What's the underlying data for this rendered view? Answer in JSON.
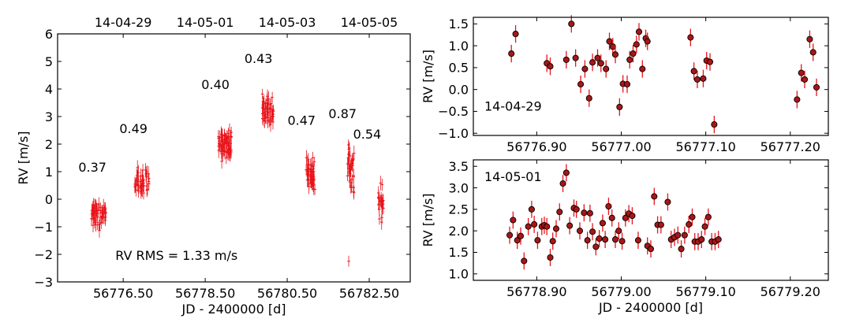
{
  "chart_data": [
    {
      "type": "scatter",
      "panel": "left",
      "xlabel": "JD - 2400000 [d]",
      "ylabel": "RV [m/s]",
      "xlim": [
        56774.9,
        56783.5
      ],
      "ylim": [
        -3,
        6
      ],
      "xticks": [
        56776.5,
        56778.5,
        56780.5,
        56782.5
      ],
      "xtick_labels": [
        "56776.50",
        "56778.50",
        "56780.50",
        "56782.50"
      ],
      "yticks": [
        -3,
        -2,
        -1,
        0,
        1,
        2,
        3,
        4,
        5,
        6
      ],
      "ytick_labels": [
        "−3",
        "−2",
        "−1",
        "0",
        "1",
        "2",
        "3",
        "4",
        "5",
        "6"
      ],
      "top_axis": {
        "ticks": [
          56776.5,
          56778.5,
          56780.5,
          56782.5
        ],
        "labels": [
          "14-04-29",
          "14-05-01",
          "14-05-03",
          "14-05-05"
        ]
      },
      "marker_color": "#e8141b",
      "groups": [
        {
          "label": "0.37",
          "x_center": 56775.9,
          "x_width": 0.36,
          "mean": -0.55,
          "spread": 0.37,
          "n": 55,
          "label_pos": [
            56775.75,
            1.0
          ]
        },
        {
          "label": "0.49",
          "x_center": 56776.95,
          "x_width": 0.36,
          "mean": 0.65,
          "spread": 0.45,
          "n": 45,
          "label_pos": [
            56776.75,
            2.4
          ]
        },
        {
          "label": "0.40",
          "x_center": 56778.98,
          "x_width": 0.32,
          "mean": 1.95,
          "spread": 0.38,
          "n": 70,
          "label_pos": [
            56778.75,
            4.0
          ]
        },
        {
          "label": "0.43",
          "x_center": 56780.03,
          "x_width": 0.28,
          "mean": 3.3,
          "spread": 0.4,
          "n": 55,
          "label_pos": [
            56779.8,
            4.95
          ]
        },
        {
          "label": "0.47",
          "x_center": 56781.07,
          "x_width": 0.22,
          "mean": 0.95,
          "spread": 0.45,
          "n": 45,
          "label_pos": [
            56780.85,
            2.7
          ]
        },
        {
          "label": "0.87",
          "x_center": 56782.05,
          "x_width": 0.16,
          "mean": 1.05,
          "spread": 0.6,
          "n": 40,
          "label_pos": [
            56781.85,
            2.95
          ]
        },
        {
          "label": "0.54",
          "x_center": 56782.78,
          "x_width": 0.14,
          "mean": -0.15,
          "spread": 0.45,
          "n": 25,
          "label_pos": [
            56782.45,
            2.2
          ]
        }
      ],
      "outlier": {
        "x": 56782.0,
        "y": -2.25
      },
      "annotation": {
        "text": "RV RMS = 1.33 m/s",
        "x": 56777.8,
        "y": -2.2
      }
    },
    {
      "type": "scatter",
      "panel": "top-right",
      "label": "14-04-29",
      "xlabel": "",
      "ylabel": "RV [m/s]",
      "xlim": [
        56776.825,
        56777.245
      ],
      "ylim": [
        -1.05,
        1.65
      ],
      "xticks": [
        56776.9,
        56777.0,
        56777.1,
        56777.2
      ],
      "xtick_labels": [
        "56776.90",
        "56777.00",
        "56777.10",
        "56777.20"
      ],
      "yticks": [
        -1.0,
        -0.5,
        0.0,
        0.5,
        1.0,
        1.5
      ],
      "ytick_labels": [
        "−1.0",
        "−0.5",
        "0.0",
        "0.5",
        "1.0",
        "1.5"
      ],
      "marker_color": "#a81616",
      "errorbar_color": "#e8141b",
      "error": 0.2,
      "x": [
        56776.87,
        56776.875,
        56776.912,
        56776.916,
        56776.935,
        56776.941,
        56776.946,
        56776.952,
        56776.957,
        56776.962,
        56776.966,
        56776.972,
        56776.976,
        56776.982,
        56776.986,
        56776.99,
        56776.993,
        56776.998,
        56777.002,
        56777.007,
        56777.01,
        56777.014,
        56777.018,
        56777.021,
        56777.025,
        56777.029,
        56777.031,
        56777.082,
        56777.086,
        56777.09,
        56777.097,
        56777.101,
        56777.105,
        56777.11,
        56777.208,
        56777.213,
        56777.217,
        56777.223,
        56777.227,
        56777.231
      ],
      "y": [
        0.82,
        1.27,
        0.6,
        0.53,
        0.68,
        1.5,
        0.72,
        0.12,
        0.47,
        -0.2,
        0.62,
        0.72,
        0.6,
        0.47,
        1.1,
        0.98,
        0.8,
        -0.4,
        0.13,
        0.12,
        0.68,
        0.82,
        1.03,
        1.32,
        0.47,
        1.17,
        1.1,
        1.19,
        0.42,
        0.23,
        0.25,
        0.66,
        0.63,
        -0.8,
        -0.23,
        0.38,
        0.23,
        1.15,
        0.85,
        0.05
      ]
    },
    {
      "type": "scatter",
      "panel": "bottom-right",
      "label": "14-05-01",
      "xlabel": "JD - 2400000 [d]",
      "ylabel": "RV [m/s]",
      "xlim": [
        56778.825,
        56779.245
      ],
      "ylim": [
        0.85,
        3.65
      ],
      "xticks": [
        56778.9,
        56779.0,
        56779.1,
        56779.2
      ],
      "xtick_labels": [
        "56778.90",
        "56779.00",
        "56779.10",
        "56779.20"
      ],
      "yticks": [
        1.0,
        1.5,
        2.0,
        2.5,
        3.0,
        3.5
      ],
      "ytick_labels": [
        "1.0",
        "1.5",
        "2.0",
        "2.5",
        "3.0",
        "3.5"
      ],
      "marker_color": "#a81616",
      "errorbar_color": "#e8141b",
      "error": 0.2,
      "x": [
        56778.868,
        56778.872,
        56778.877,
        56778.881,
        56778.885,
        56778.89,
        56778.894,
        56778.897,
        56778.901,
        56778.906,
        56778.909,
        56778.912,
        56778.916,
        56778.919,
        56778.923,
        56778.927,
        56778.931,
        56778.935,
        56778.939,
        56778.944,
        56778.947,
        56778.951,
        56778.956,
        56778.96,
        56778.963,
        56778.966,
        56778.97,
        56778.974,
        56778.978,
        56778.981,
        56778.985,
        56778.989,
        56778.993,
        56778.997,
        56779.001,
        56779.005,
        56779.009,
        56779.013,
        56779.02,
        56779.031,
        56779.035,
        56779.039,
        56779.043,
        56779.047,
        56779.055,
        56779.059,
        56779.063,
        56779.067,
        56779.071,
        56779.075,
        56779.08,
        56779.084,
        56779.087,
        56779.091,
        56779.095,
        56779.099,
        56779.103,
        56779.107,
        56779.111,
        56779.115
      ],
      "y": [
        1.9,
        2.25,
        1.78,
        1.88,
        1.3,
        2.1,
        2.5,
        2.15,
        1.78,
        2.1,
        2.13,
        2.1,
        1.38,
        1.76,
        2.05,
        2.44,
        3.1,
        3.35,
        2.12,
        2.53,
        2.5,
        2.0,
        2.42,
        1.78,
        2.41,
        1.98,
        1.63,
        1.82,
        2.18,
        1.8,
        2.57,
        2.3,
        1.8,
        2.0,
        1.76,
        2.3,
        2.4,
        2.35,
        1.78,
        1.65,
        1.58,
        2.8,
        2.14,
        2.14,
        2.67,
        1.8,
        1.85,
        1.9,
        1.58,
        1.9,
        2.15,
        2.32,
        1.75,
        1.75,
        1.8,
        2.1,
        2.32,
        1.75,
        1.75,
        1.8
      ]
    }
  ]
}
